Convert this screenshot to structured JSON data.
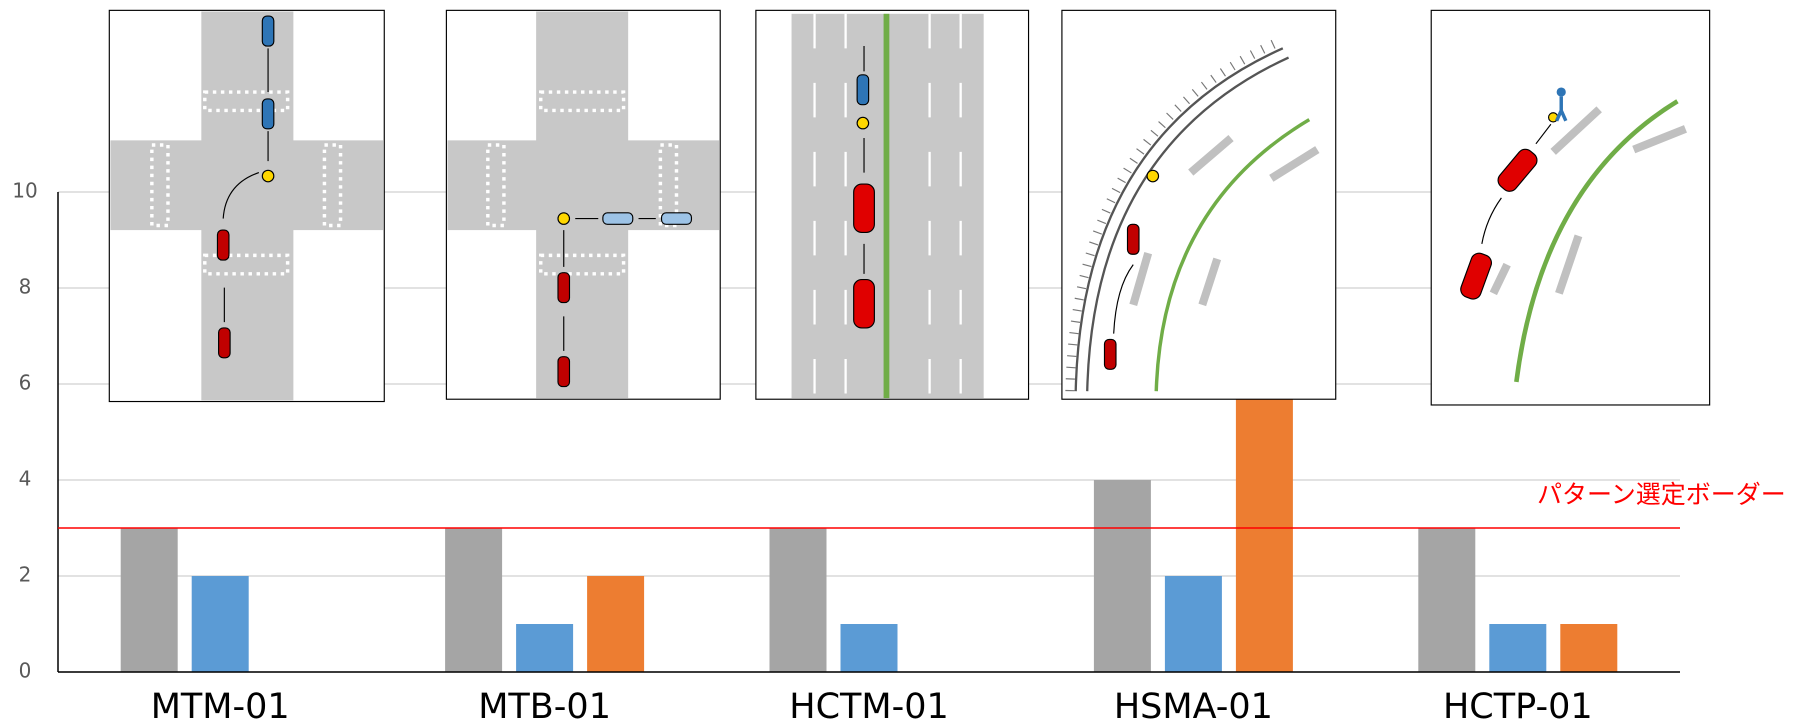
{
  "chart_data": {
    "type": "bar",
    "categories": [
      "MTM-01",
      "MTB-01",
      "HCTM-01",
      "HSMA-01",
      "HCTP-01"
    ],
    "category_label_colors": [
      "#000000",
      "#000000",
      "#000000",
      "#a6a6a6",
      "#000000"
    ],
    "series": [
      {
        "color": "#a5a5a5",
        "values": [
          3,
          3,
          3,
          4,
          3
        ]
      },
      {
        "color": "#5b9bd5",
        "values": [
          2,
          1,
          1,
          2,
          1
        ]
      },
      {
        "color": "#ed7d31",
        "values": [
          0,
          2,
          0,
          7,
          1
        ]
      }
    ],
    "ylim": [
      0,
      10
    ],
    "yticks": [
      0,
      2,
      4,
      6,
      8,
      10
    ],
    "grid": true,
    "threshold": {
      "value": 3,
      "label": "パターン選定ボーダー",
      "color": "#ff0000"
    }
  }
}
